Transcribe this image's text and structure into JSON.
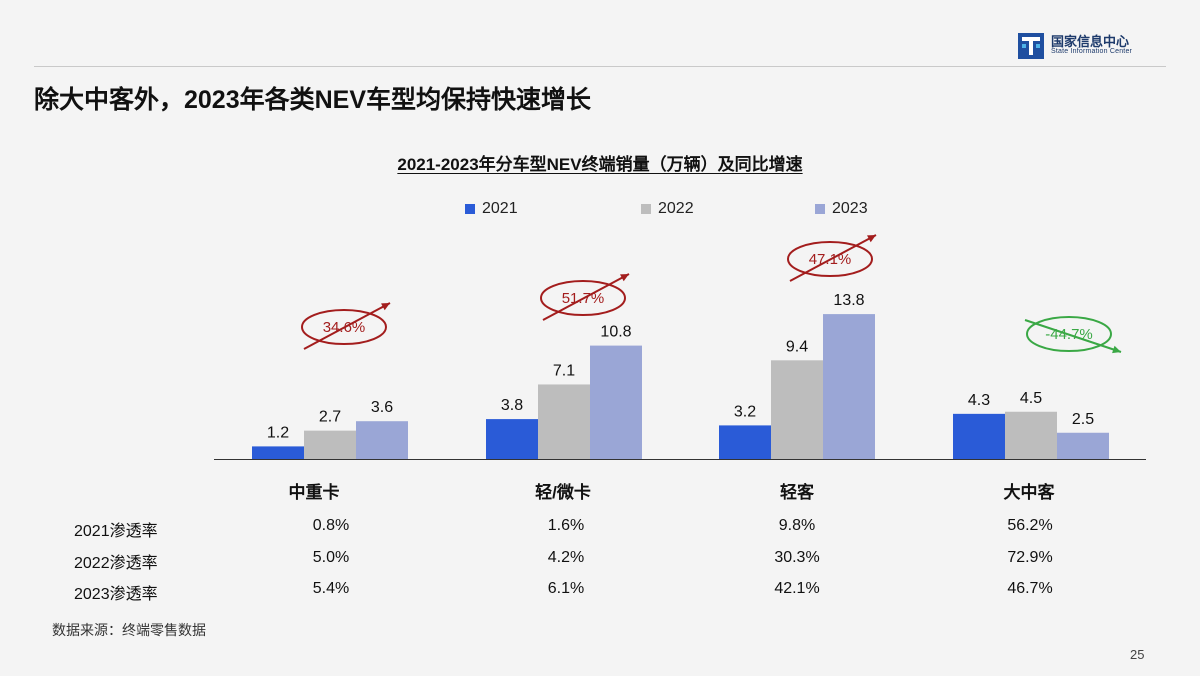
{
  "logo": {
    "name_cn": "国家信息中心",
    "name_en": "State Information Center"
  },
  "slide": {
    "title": "除大中客外，2023年各类NEV车型均保持快速增长"
  },
  "chart_data": {
    "type": "bar",
    "title": "2021-2023年分车型NEV终端销量（万辆）及同比增速",
    "categories": [
      "中重卡",
      "轻/微卡",
      "轻客",
      "大中客"
    ],
    "series": [
      {
        "name": "2021",
        "values": [
          1.2,
          3.8,
          3.2,
          4.3
        ],
        "color": "#2a5bd7"
      },
      {
        "name": "2022",
        "values": [
          2.7,
          7.1,
          9.4,
          4.5
        ],
        "color": "#bdbdbd"
      },
      {
        "name": "2023",
        "values": [
          3.6,
          10.8,
          13.8,
          2.5
        ],
        "color": "#9aa6d6"
      }
    ],
    "value_labels": [
      [
        "1.2",
        "2.7",
        "3.6"
      ],
      [
        "3.8",
        "7.1",
        "10.8"
      ],
      [
        "3.2",
        "9.4",
        "13.8"
      ],
      [
        "4.3",
        "4.5",
        "2.5"
      ]
    ],
    "growth_annotations": [
      {
        "label": "34.6%",
        "direction": "up",
        "color": "#a31d1d"
      },
      {
        "label": "51.7%",
        "direction": "up",
        "color": "#a31d1d"
      },
      {
        "label": "47.1%",
        "direction": "up",
        "color": "#a31d1d"
      },
      {
        "label": "-44.7%",
        "direction": "down",
        "color": "#3aa845"
      }
    ],
    "legend_position": "top-center",
    "grid": false
  },
  "penetration": {
    "rows": [
      {
        "label": "2021渗透率",
        "values": [
          "0.8%",
          "1.6%",
          "9.8%",
          "56.2%"
        ]
      },
      {
        "label": "2022渗透率",
        "values": [
          "5.0%",
          "4.2%",
          "30.3%",
          "72.9%"
        ]
      },
      {
        "label": "2023渗透率",
        "values": [
          "5.4%",
          "6.1%",
          "42.1%",
          "46.7%"
        ]
      }
    ]
  },
  "footer": {
    "source": "数据来源：终端零售数据",
    "page": "25"
  }
}
